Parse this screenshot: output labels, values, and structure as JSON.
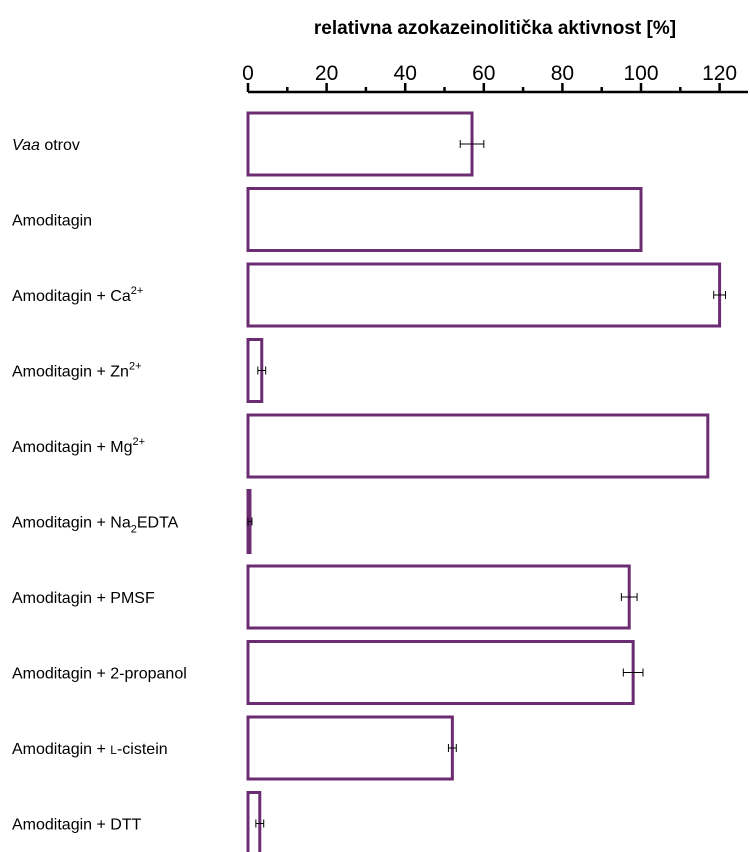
{
  "chart_data": {
    "type": "bar",
    "orientation": "horizontal",
    "title": "",
    "xlabel": "relativna azokazeinolitička aktivnost [%]",
    "ylabel": "",
    "xlim": [
      0,
      125
    ],
    "x_ticks": [
      "0",
      "20",
      "40",
      "60",
      "80",
      "100",
      "120"
    ],
    "axis_position": "top",
    "grid": false,
    "bar_color": "#6b2c72",
    "categories": [
      {
        "parts": [
          {
            "t": "Vaa",
            "style": "italic"
          },
          {
            "t": " otrov"
          }
        ]
      },
      {
        "parts": [
          {
            "t": "Amoditagin"
          }
        ]
      },
      {
        "parts": [
          {
            "t": "Amoditagin + Ca"
          },
          {
            "t": "2+",
            "style": "sup"
          }
        ]
      },
      {
        "parts": [
          {
            "t": "Amoditagin + Zn"
          },
          {
            "t": "2+",
            "style": "sup"
          }
        ]
      },
      {
        "parts": [
          {
            "t": "Amoditagin + Mg"
          },
          {
            "t": "2+",
            "style": "sup"
          }
        ]
      },
      {
        "parts": [
          {
            "t": "Amoditagin + Na"
          },
          {
            "t": "2",
            "style": "sub"
          },
          {
            "t": "EDTA"
          }
        ]
      },
      {
        "parts": [
          {
            "t": "Amoditagin + PMSF"
          }
        ]
      },
      {
        "parts": [
          {
            "t": "Amoditagin + 2-propanol"
          }
        ]
      },
      {
        "parts": [
          {
            "t": "Amoditagin + "
          },
          {
            "t": "L",
            "style": "smallcaps"
          },
          {
            "t": "-cistein"
          }
        ]
      },
      {
        "parts": [
          {
            "t": "Amoditagin + DTT"
          }
        ]
      }
    ],
    "values": [
      57,
      100,
      120,
      3.5,
      117,
      0.5,
      97,
      98,
      52,
      3
    ],
    "errors": [
      3,
      0,
      1.5,
      1,
      0,
      0.5,
      2,
      2.5,
      1,
      1
    ]
  }
}
